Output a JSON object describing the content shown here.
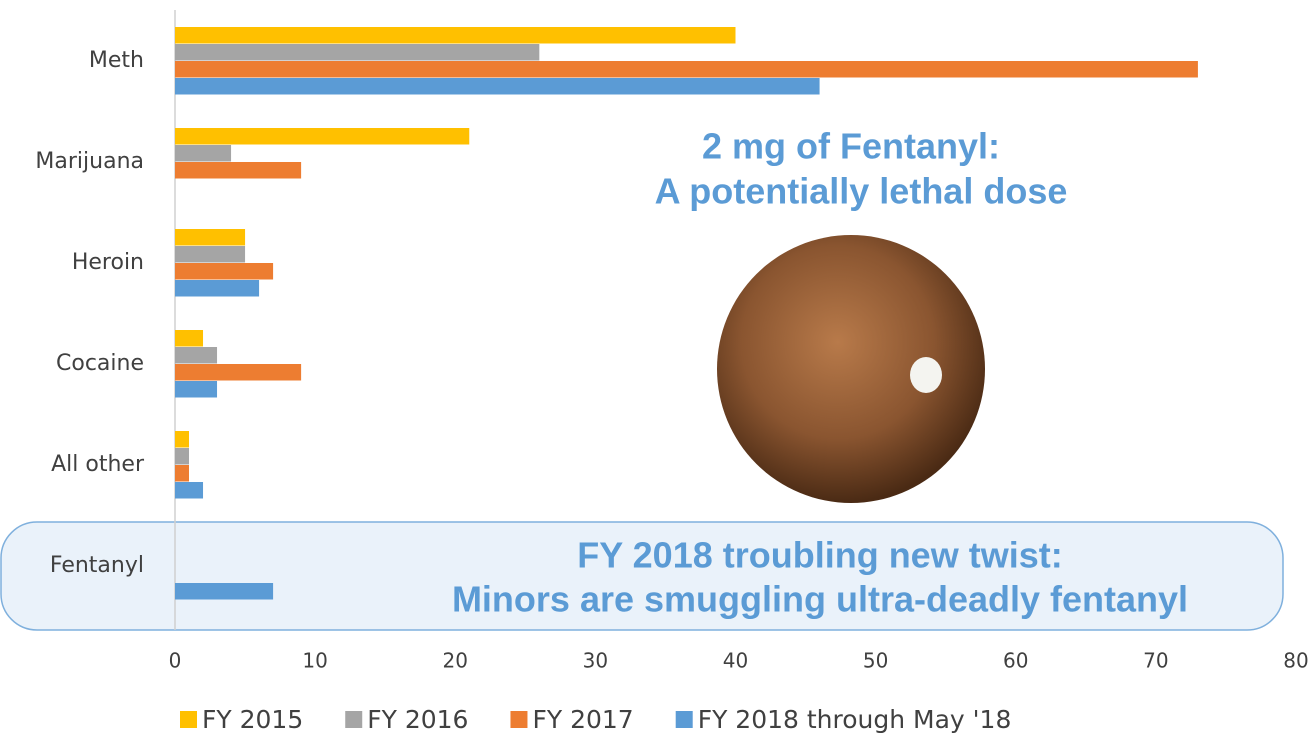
{
  "chart_data": {
    "type": "hbar",
    "categories": [
      "Meth",
      "Marijuana",
      "Heroin",
      "Cocaine",
      "All other",
      "Fentanyl"
    ],
    "series": [
      {
        "name": "FY 2015",
        "color": "#FFC000",
        "values": [
          40,
          21,
          5,
          2,
          1,
          0
        ]
      },
      {
        "name": "FY 2016",
        "color": "#A5A5A5",
        "values": [
          26,
          4,
          5,
          3,
          1,
          0
        ]
      },
      {
        "name": "FY 2017",
        "color": "#ED7D31",
        "values": [
          73,
          9,
          7,
          9,
          1,
          0
        ]
      },
      {
        "name": "FY 2018 through May '18",
        "color": "#5B9BD5",
        "values": [
          46,
          0,
          6,
          3,
          2,
          7
        ]
      }
    ],
    "xlim": [
      0,
      80
    ],
    "xticks": [
      0,
      10,
      20,
      30,
      40,
      50,
      60,
      70,
      80
    ],
    "legend": "bottom",
    "annotations": [
      "2 mg of Fentanyl:",
      "A potentially lethal dose",
      "FY 2018 troubling new twist:",
      "Minors are smuggling ultra-deadly fentanyl"
    ]
  }
}
